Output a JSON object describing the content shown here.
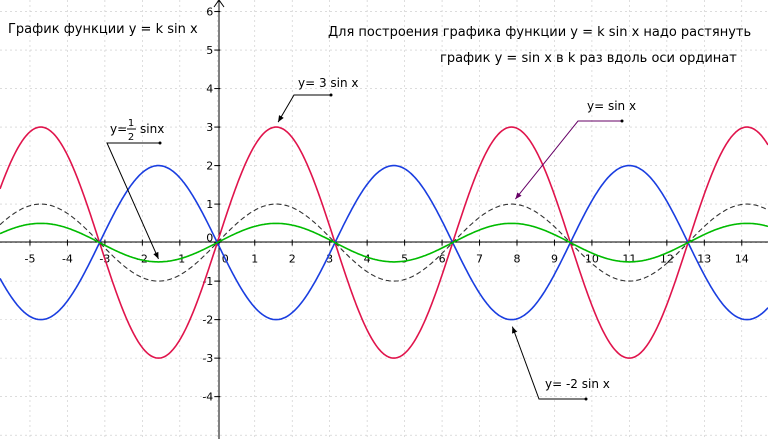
{
  "title_left": "График  функции y = k sin x",
  "caption_line1": "Для  построения графика функции y = k sin x  надо растянуть",
  "caption_line2": "график y = sin x  в k раз вдоль оси ординат",
  "colors": {
    "sin3": "#e0144c",
    "neg2sin": "#1a3ee0",
    "sin": "#333333",
    "half_sin": "#00bb00",
    "axis": "#000000",
    "grid": "#c8c8c8",
    "callout_purple": "#660066"
  },
  "chart_data": {
    "type": "line",
    "title": "График  функции y = k sin x",
    "xlabel": "",
    "ylabel": "",
    "xlim": [
      -5.8,
      14.7
    ],
    "ylim": [
      -5.1,
      6.3
    ],
    "grid": true,
    "x_ticks": [
      "-5",
      "-4",
      "-3",
      "-2",
      "-1",
      "0",
      "1",
      "2",
      "3",
      "4",
      "5",
      "6",
      "7",
      "8",
      "9",
      "10",
      "11",
      "12",
      "13",
      "14"
    ],
    "y_ticks": [
      "-4",
      "-3",
      "-2",
      "-1",
      "0",
      "1",
      "2",
      "3",
      "4",
      "5",
      "6"
    ],
    "series": [
      {
        "name": "y= 3 sin x",
        "k": 3,
        "color": "#e0144c",
        "dash": false
      },
      {
        "name": "y= -2 sin x",
        "k": -2,
        "color": "#1a3ee0",
        "dash": false
      },
      {
        "name": "y= sin x",
        "k": 1,
        "color": "#333333",
        "dash": true
      },
      {
        "name": "y=½sinx",
        "k": 0.5,
        "color": "#00bb00",
        "dash": false
      }
    ],
    "annotations": [
      {
        "series": "y= 3 sin x",
        "text": "y= 3 sin x",
        "point": [
          1.57,
          3.0
        ]
      },
      {
        "series": "y= sin x",
        "text": "y= sin x",
        "point": [
          7.85,
          1.0
        ]
      },
      {
        "series": "y= -2 sin x",
        "text": "y= -2 sin x",
        "point": [
          7.85,
          -2.0
        ]
      },
      {
        "series": "y=½sinx",
        "text_prefix": "y=",
        "fraction_num": "1",
        "fraction_den": "2",
        "text_suffix": "sinx",
        "point": [
          -1.57,
          -0.5
        ]
      }
    ]
  }
}
